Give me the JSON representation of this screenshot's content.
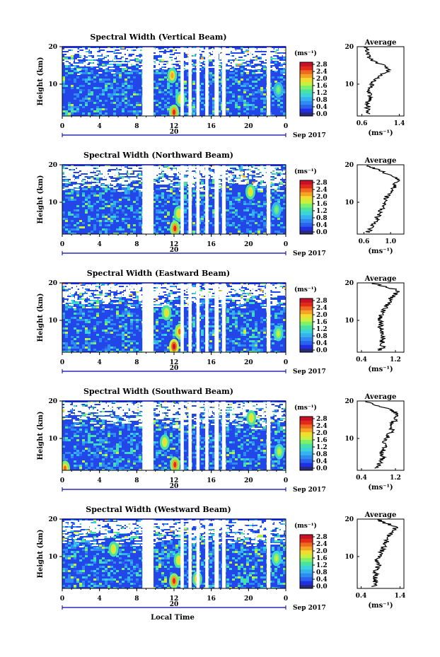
{
  "chart_data": [
    {
      "type": "heatmap",
      "title": "Spectral Width (Vertical Beam)",
      "ylabel": "Height (km)",
      "xlim": [
        0,
        24
      ],
      "ylim": [
        1.5,
        20
      ],
      "x_ticks": [
        "0",
        "4",
        "8",
        "12",
        "16",
        "20",
        "0"
      ],
      "x_tick_values": [
        0,
        4,
        8,
        12,
        16,
        20,
        24
      ],
      "y_ticks": [
        "20",
        "10"
      ],
      "y_tick_values": [
        20,
        10
      ],
      "date_label": "20",
      "month_label": "Sep 2017",
      "colorbar": {
        "unit": "(ms⁻¹)",
        "ticks": [
          "2.8",
          "2.4",
          "2.0",
          "1.6",
          "1.2",
          "0.8",
          "0.4",
          "0.0"
        ],
        "tick_values": [
          2.8,
          2.4,
          2.0,
          1.6,
          1.2,
          0.8,
          0.4,
          0.0
        ]
      },
      "data_gaps_hours": [
        [
          8.6,
          9.8
        ],
        [
          12.7,
          13.05
        ],
        [
          13.55,
          13.9
        ],
        [
          14.4,
          14.75
        ],
        [
          15.35,
          15.7
        ],
        [
          16.35,
          16.8
        ],
        [
          17.15,
          17.55
        ],
        [
          21.95,
          22.35
        ]
      ],
      "enhanced_regions": [
        {
          "x": 12.0,
          "y": 2.5,
          "level": 2.6
        },
        {
          "x": 12.7,
          "y": 6.0,
          "level": 2.0
        },
        {
          "x": 11.8,
          "y": 12.3,
          "level": 2.2
        },
        {
          "x": 23.2,
          "y": 8.5,
          "level": 1.6
        }
      ],
      "average_profile": {
        "title": "Average",
        "xlabel": "(ms⁻¹)",
        "x_ticks": [
          "0.6",
          "1.4"
        ],
        "x_tick_values": [
          0.6,
          1.4
        ],
        "xlim": [
          0.5,
          1.5
        ],
        "y_ticks": [
          "20",
          "10"
        ],
        "height": [
          2,
          3,
          4,
          5,
          6,
          7,
          8,
          9,
          10,
          11,
          12,
          13,
          14,
          15,
          16,
          17,
          18,
          19,
          20
        ],
        "value": [
          0.72,
          0.7,
          0.74,
          0.71,
          0.76,
          0.78,
          0.74,
          0.8,
          0.82,
          0.86,
          0.95,
          1.1,
          1.2,
          1.05,
          0.85,
          0.75,
          0.72,
          0.7,
          0.68
        ]
      }
    },
    {
      "type": "heatmap",
      "title": "Spectral Width (Northward Beam)",
      "ylabel": "Height (km)",
      "xlim": [
        0,
        24
      ],
      "ylim": [
        1.5,
        20
      ],
      "x_ticks": [
        "0",
        "4",
        "8",
        "12",
        "16",
        "20",
        "0"
      ],
      "x_tick_values": [
        0,
        4,
        8,
        12,
        16,
        20,
        24
      ],
      "y_ticks": [
        "20",
        "10"
      ],
      "y_tick_values": [
        20,
        10
      ],
      "date_label": "20",
      "month_label": "Sep 2017",
      "colorbar": {
        "unit": "(ms⁻¹)",
        "ticks": [
          "2.8",
          "2.4",
          "2.0",
          "1.6",
          "1.2",
          "0.8",
          "0.4",
          "0.0"
        ],
        "tick_values": [
          2.8,
          2.4,
          2.0,
          1.6,
          1.2,
          0.8,
          0.4,
          0.0
        ]
      },
      "data_gaps_hours": [
        [
          8.6,
          9.8
        ],
        [
          12.7,
          13.05
        ],
        [
          13.55,
          13.9
        ],
        [
          14.4,
          14.75
        ],
        [
          15.35,
          15.7
        ],
        [
          16.35,
          16.8
        ],
        [
          17.15,
          17.55
        ],
        [
          21.95,
          22.35
        ]
      ],
      "enhanced_regions": [
        {
          "x": 12.1,
          "y": 3.0,
          "level": 2.6
        },
        {
          "x": 12.5,
          "y": 7.0,
          "level": 2.0
        },
        {
          "x": 20.2,
          "y": 12.8,
          "level": 2.0
        },
        {
          "x": 23.0,
          "y": 8.0,
          "level": 1.6
        }
      ],
      "average_profile": {
        "title": "Average",
        "xlabel": "(ms⁻¹)",
        "x_ticks": [
          "0.6",
          "1.0"
        ],
        "x_tick_values": [
          0.6,
          1.0
        ],
        "xlim": [
          0.5,
          1.2
        ],
        "y_ticks": [
          "20",
          "10"
        ],
        "height": [
          2,
          3,
          4,
          5,
          6,
          7,
          8,
          9,
          10,
          11,
          12,
          13,
          14,
          15,
          16,
          17,
          18,
          19,
          20
        ],
        "value": [
          0.66,
          0.7,
          0.74,
          0.78,
          0.8,
          0.84,
          0.86,
          0.88,
          0.9,
          0.92,
          0.96,
          1.0,
          1.05,
          1.08,
          1.1,
          1.02,
          0.9,
          0.75,
          0.65
        ]
      }
    },
    {
      "type": "heatmap",
      "title": "Spectral Width (Eastward Beam)",
      "ylabel": "Height (km)",
      "xlim": [
        0,
        24
      ],
      "ylim": [
        1.5,
        20
      ],
      "x_ticks": [
        "0",
        "4",
        "8",
        "12",
        "16",
        "20",
        "0"
      ],
      "x_tick_values": [
        0,
        4,
        8,
        12,
        16,
        20,
        24
      ],
      "y_ticks": [
        "20",
        "10"
      ],
      "y_tick_values": [
        20,
        10
      ],
      "date_label": "20",
      "month_label": "Sep 2017",
      "colorbar": {
        "unit": "(ms⁻¹)",
        "ticks": [
          "2.8",
          "2.4",
          "2.0",
          "1.6",
          "1.2",
          "0.8",
          "0.4",
          "0.0"
        ],
        "tick_values": [
          2.8,
          2.4,
          2.0,
          1.6,
          1.2,
          0.8,
          0.4,
          0.0
        ]
      },
      "data_gaps_hours": [
        [
          8.6,
          9.8
        ],
        [
          12.7,
          13.05
        ],
        [
          13.55,
          13.9
        ],
        [
          14.4,
          14.75
        ],
        [
          15.35,
          15.7
        ],
        [
          16.35,
          16.8
        ],
        [
          17.15,
          17.55
        ],
        [
          21.95,
          22.35
        ]
      ],
      "enhanced_regions": [
        {
          "x": 12.0,
          "y": 3.0,
          "level": 2.8
        },
        {
          "x": 12.6,
          "y": 7.0,
          "level": 2.4
        },
        {
          "x": 11.2,
          "y": 12.0,
          "level": 2.0
        },
        {
          "x": 23.2,
          "y": 6.5,
          "level": 1.8
        }
      ],
      "average_profile": {
        "title": "Average",
        "xlabel": "(ms⁻¹)",
        "x_ticks": [
          "0.4",
          "1.2"
        ],
        "x_tick_values": [
          0.4,
          1.2
        ],
        "xlim": [
          0.3,
          1.4
        ],
        "y_ticks": [
          "20",
          "10"
        ],
        "height": [
          2,
          3,
          4,
          5,
          6,
          7,
          8,
          9,
          10,
          11,
          12,
          13,
          14,
          15,
          16,
          17,
          18,
          19,
          20
        ],
        "value": [
          0.85,
          0.9,
          0.88,
          0.92,
          0.86,
          0.9,
          0.84,
          0.88,
          0.82,
          0.86,
          0.9,
          0.95,
          1.0,
          1.05,
          1.1,
          1.2,
          1.25,
          1.0,
          0.6
        ]
      }
    },
    {
      "type": "heatmap",
      "title": "Spectral Width (Southward Beam)",
      "ylabel": "Height (km)",
      "xlim": [
        0,
        24
      ],
      "ylim": [
        1.5,
        20
      ],
      "x_ticks": [
        "0",
        "4",
        "8",
        "12",
        "16",
        "20",
        "0"
      ],
      "x_tick_values": [
        0,
        4,
        8,
        12,
        16,
        20,
        24
      ],
      "y_ticks": [
        "20",
        "10"
      ],
      "y_tick_values": [
        20,
        10
      ],
      "date_label": "20",
      "month_label": "Sep 2017",
      "colorbar": {
        "unit": "(ms⁻¹)",
        "ticks": [
          "2.8",
          "2.4",
          "2.0",
          "1.6",
          "1.2",
          "0.8",
          "0.4",
          "0.0"
        ],
        "tick_values": [
          2.8,
          2.4,
          2.0,
          1.6,
          1.2,
          0.8,
          0.4,
          0.0
        ]
      },
      "data_gaps_hours": [
        [
          8.6,
          9.8
        ],
        [
          12.7,
          13.05
        ],
        [
          13.55,
          13.9
        ],
        [
          14.4,
          14.75
        ],
        [
          15.35,
          15.7
        ],
        [
          16.35,
          16.8
        ],
        [
          17.15,
          17.55
        ],
        [
          21.95,
          22.35
        ]
      ],
      "enhanced_regions": [
        {
          "x": 12.1,
          "y": 3.0,
          "level": 2.6
        },
        {
          "x": 11.0,
          "y": 9.0,
          "level": 2.0
        },
        {
          "x": 20.3,
          "y": 15.5,
          "level": 2.0
        },
        {
          "x": 23.3,
          "y": 6.5,
          "level": 1.8
        },
        {
          "x": 0.3,
          "y": 2.0,
          "level": 2.4
        }
      ],
      "average_profile": {
        "title": "Average",
        "xlabel": "(ms⁻¹)",
        "x_ticks": [
          "0.4",
          "1.2"
        ],
        "x_tick_values": [
          0.4,
          1.2
        ],
        "xlim": [
          0.3,
          1.4
        ],
        "y_ticks": [
          "20",
          "10"
        ],
        "height": [
          2,
          3,
          4,
          5,
          6,
          7,
          8,
          9,
          10,
          11,
          12,
          13,
          14,
          15,
          16,
          17,
          18,
          19,
          20
        ],
        "value": [
          0.75,
          0.8,
          0.85,
          0.9,
          0.88,
          0.92,
          0.95,
          0.9,
          1.0,
          1.05,
          1.1,
          1.15,
          1.12,
          1.2,
          1.22,
          1.18,
          1.0,
          0.7,
          0.5
        ]
      }
    },
    {
      "type": "heatmap",
      "title": "Spectral Width (Westward Beam)",
      "ylabel": "Height (km)",
      "xlabel": "Local Time",
      "xlim": [
        0,
        24
      ],
      "ylim": [
        1.5,
        20
      ],
      "x_ticks": [
        "0",
        "4",
        "8",
        "12",
        "16",
        "20",
        "0"
      ],
      "x_tick_values": [
        0,
        4,
        8,
        12,
        16,
        20,
        24
      ],
      "y_ticks": [
        "20",
        "10"
      ],
      "y_tick_values": [
        20,
        10
      ],
      "date_label": "20",
      "month_label": "Sep 2017",
      "colorbar": {
        "unit": "(ms⁻¹)",
        "ticks": [
          "2.8",
          "2.4",
          "2.0",
          "1.6",
          "1.2",
          "0.8",
          "0.4",
          "0.0"
        ],
        "tick_values": [
          2.8,
          2.4,
          2.0,
          1.6,
          1.2,
          0.8,
          0.4,
          0.0
        ]
      },
      "data_gaps_hours": [
        [
          8.6,
          9.8
        ],
        [
          12.7,
          13.05
        ],
        [
          13.55,
          13.9
        ],
        [
          14.4,
          14.75
        ],
        [
          15.35,
          15.7
        ],
        [
          16.35,
          16.8
        ],
        [
          17.15,
          17.55
        ],
        [
          21.95,
          22.35
        ]
      ],
      "enhanced_regions": [
        {
          "x": 12.0,
          "y": 3.5,
          "level": 2.6
        },
        {
          "x": 5.5,
          "y": 12.0,
          "level": 2.0
        },
        {
          "x": 12.5,
          "y": 9.0,
          "level": 2.0
        },
        {
          "x": 23.0,
          "y": 9.5,
          "level": 1.8
        },
        {
          "x": 14.5,
          "y": 4.0,
          "level": 2.2
        }
      ],
      "average_profile": {
        "title": "Average",
        "xlabel": "(ms⁻¹)",
        "x_ticks": [
          "0.4",
          "1.4"
        ],
        "x_tick_values": [
          0.4,
          1.4
        ],
        "xlim": [
          0.3,
          1.5
        ],
        "y_ticks": [
          "20",
          "10"
        ],
        "height": [
          2,
          3,
          4,
          5,
          6,
          7,
          8,
          9,
          10,
          11,
          12,
          13,
          14,
          15,
          16,
          17,
          18,
          19,
          20
        ],
        "value": [
          0.72,
          0.78,
          0.75,
          0.8,
          0.78,
          0.82,
          0.85,
          0.8,
          0.86,
          0.9,
          0.95,
          1.0,
          1.05,
          1.1,
          1.15,
          1.25,
          1.3,
          1.0,
          0.8
        ]
      }
    }
  ],
  "colors": {
    "background_fill": "#2246e8",
    "gap_fill": "#ffffff",
    "axis": "#000000",
    "axis_accent": "#0000aa",
    "colormap": [
      "#2a2a7a",
      "#1f2fe6",
      "#2a62ee",
      "#2f8bf2",
      "#35b3f0",
      "#3bd4d8",
      "#48e3a4",
      "#7ef06a",
      "#c8f03e",
      "#f2dc2e",
      "#f5a324",
      "#f06a1e",
      "#e22a18",
      "#c8102a"
    ]
  }
}
